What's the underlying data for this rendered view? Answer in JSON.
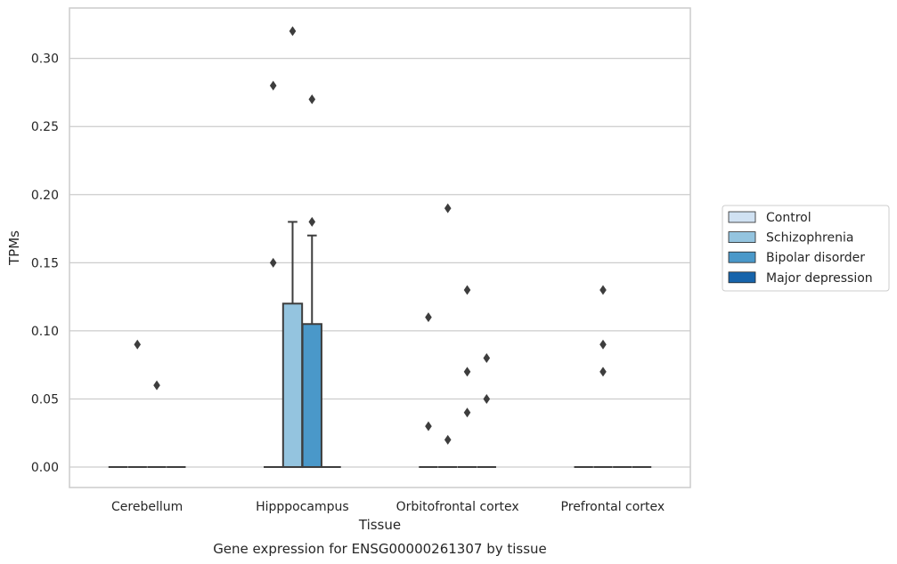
{
  "chart_data": {
    "type": "boxplot",
    "caption": "Gene expression for ENSG00000261307 by tissue",
    "xlabel": "Tissue",
    "ylabel": "TPMs",
    "ylim": [
      -0.015,
      0.337
    ],
    "yticks": [
      "0.00",
      "0.05",
      "0.10",
      "0.15",
      "0.20",
      "0.25",
      "0.30"
    ],
    "grid": true,
    "legend_position": "right",
    "categories": [
      "Cerebellum",
      "Hipppocampus",
      "Orbitofrontal cortex",
      "Prefrontal cortex"
    ],
    "series": [
      {
        "name": "Control",
        "color": "#d0e1f2",
        "boxes": [
          {
            "q1": 0,
            "median": 0,
            "q3": 0,
            "whisker_low": 0,
            "whisker_high": 0,
            "outliers": []
          },
          {
            "q1": 0,
            "median": 0,
            "q3": 0,
            "whisker_low": 0,
            "whisker_high": 0,
            "outliers": [
              0.15,
              0.28
            ]
          },
          {
            "q1": 0,
            "median": 0,
            "q3": 0,
            "whisker_low": 0,
            "whisker_high": 0,
            "outliers": [
              0.03,
              0.11
            ]
          },
          {
            "q1": 0,
            "median": 0,
            "q3": 0,
            "whisker_low": 0,
            "whisker_high": 0,
            "outliers": []
          }
        ]
      },
      {
        "name": "Schizophrenia",
        "color": "#94c4df",
        "boxes": [
          {
            "q1": 0,
            "median": 0,
            "q3": 0,
            "whisker_low": 0,
            "whisker_high": 0,
            "outliers": [
              0.09
            ]
          },
          {
            "q1": 0,
            "median": 0,
            "q3": 0.12,
            "whisker_low": 0,
            "whisker_high": 0.18,
            "outliers": [
              0.32
            ]
          },
          {
            "q1": 0,
            "median": 0,
            "q3": 0,
            "whisker_low": 0,
            "whisker_high": 0,
            "outliers": [
              0.02,
              0.19
            ]
          },
          {
            "q1": 0,
            "median": 0,
            "q3": 0,
            "whisker_low": 0,
            "whisker_high": 0,
            "outliers": [
              0.07,
              0.09,
              0.13
            ]
          }
        ]
      },
      {
        "name": "Bipolar disorder",
        "color": "#4a98c9",
        "boxes": [
          {
            "q1": 0,
            "median": 0,
            "q3": 0,
            "whisker_low": 0,
            "whisker_high": 0,
            "outliers": [
              0.06
            ]
          },
          {
            "q1": 0,
            "median": 0,
            "q3": 0.105,
            "whisker_low": 0,
            "whisker_high": 0.17,
            "outliers": [
              0.18,
              0.27
            ]
          },
          {
            "q1": 0,
            "median": 0,
            "q3": 0,
            "whisker_low": 0,
            "whisker_high": 0,
            "outliers": [
              0.04,
              0.07,
              0.13
            ]
          },
          {
            "q1": 0,
            "median": 0,
            "q3": 0,
            "whisker_low": 0,
            "whisker_high": 0,
            "outliers": []
          }
        ]
      },
      {
        "name": "Major depression",
        "color": "#1764ab",
        "boxes": [
          {
            "q1": 0,
            "median": 0,
            "q3": 0,
            "whisker_low": 0,
            "whisker_high": 0,
            "outliers": []
          },
          {
            "q1": 0,
            "median": 0,
            "q3": 0,
            "whisker_low": 0,
            "whisker_high": 0,
            "outliers": []
          },
          {
            "q1": 0,
            "median": 0,
            "q3": 0,
            "whisker_low": 0,
            "whisker_high": 0,
            "outliers": [
              0.05,
              0.08
            ]
          },
          {
            "q1": 0,
            "median": 0,
            "q3": 0,
            "whisker_low": 0,
            "whisker_high": 0,
            "outliers": []
          }
        ]
      }
    ]
  }
}
